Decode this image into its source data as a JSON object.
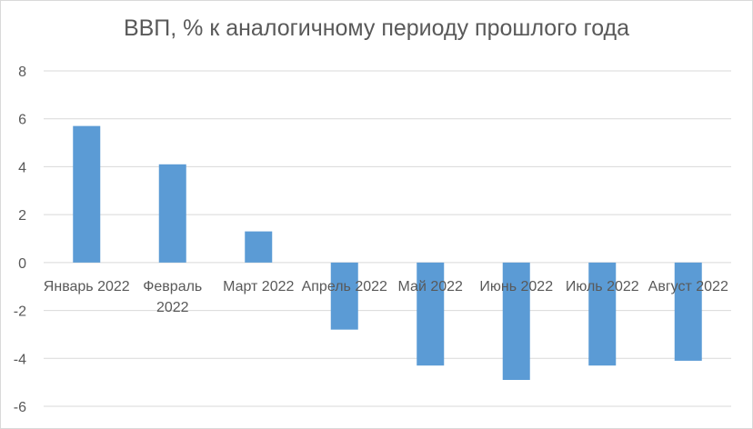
{
  "chart_data": {
    "type": "bar",
    "title": "ВВП, % к аналогичному периоду прошлого года",
    "categories": [
      "Январь 2022",
      "Февраль 2022",
      "Март 2022",
      "Апрель 2022",
      "Май 2022",
      "Июнь 2022",
      "Июль 2022",
      "Август 2022"
    ],
    "values": [
      5.7,
      4.1,
      1.3,
      -2.8,
      -4.3,
      -4.9,
      -4.3,
      -4.1
    ],
    "ylim": [
      -6,
      8
    ],
    "yticks": [
      "8",
      "6",
      "4",
      "2",
      "0",
      "-2",
      "-4",
      "-6"
    ],
    "grid": true,
    "legend": "none",
    "bar_color": "#5b9bd5",
    "grid_color": "#d9d9d9",
    "text_color": "#595959"
  }
}
